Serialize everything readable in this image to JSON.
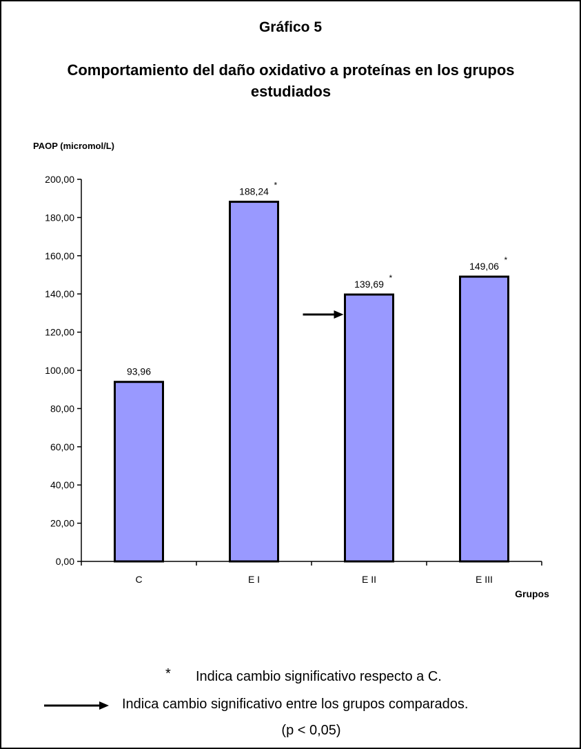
{
  "chart_data": {
    "type": "bar",
    "title": "Gráfico 5",
    "subtitle": "Comportamiento del daño oxidativo a proteínas en los grupos estudiados",
    "ylabel": "PAOP (micromol/L)",
    "xlabel": "Grupos",
    "ylim": [
      0,
      200
    ],
    "yticks": [
      "0,00",
      "20,00",
      "40,00",
      "60,00",
      "80,00",
      "100,00",
      "120,00",
      "140,00",
      "160,00",
      "180,00",
      "200,00"
    ],
    "categories": [
      "C",
      "E I",
      "E II",
      "E III"
    ],
    "values": [
      93.96,
      188.24,
      139.69,
      149.06
    ],
    "data_labels": [
      "93,96",
      "188,24",
      "139,69",
      "149,06"
    ],
    "significance_markers": [
      "",
      "*",
      "*",
      "*"
    ],
    "comparison_arrow": {
      "from": "E I",
      "to": "E II"
    },
    "grid": false,
    "bar_color": "#9999ff",
    "bar_border_color": "#000000"
  },
  "legend": {
    "star_symbol": "*",
    "star_text": "Indica cambio significativo respecto a C.",
    "arrow_text": "Indica cambio significativo entre los grupos comparados.",
    "p_value_text": "(p < 0,05)"
  }
}
